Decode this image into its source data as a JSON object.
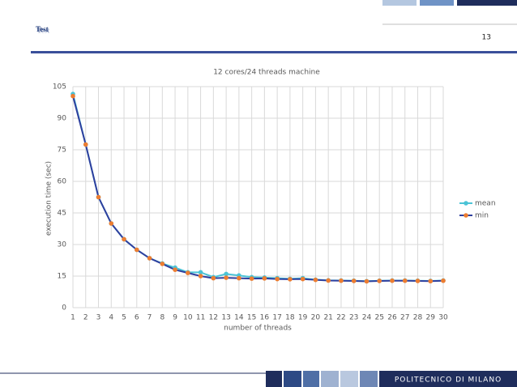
{
  "slide": {
    "title": "Test",
    "page_number": "13",
    "footer": "POLITECNICO DI MILANO"
  },
  "chart_data": {
    "type": "line",
    "title": "12 cores/24 threads machine",
    "x_label": "number of threads",
    "y_label": "execution time (sec)",
    "x": [
      1,
      2,
      3,
      4,
      5,
      6,
      7,
      8,
      9,
      10,
      11,
      12,
      13,
      14,
      15,
      16,
      17,
      18,
      19,
      20,
      21,
      22,
      23,
      24,
      25,
      26,
      27,
      28,
      29,
      30
    ],
    "xlim": [
      1,
      30
    ],
    "ylim": [
      0,
      105
    ],
    "yticks": [
      0,
      15,
      30,
      45,
      60,
      75,
      90,
      105
    ],
    "grid": true,
    "legend": "right",
    "series": [
      {
        "name": "mean",
        "color": "#4bc3d6",
        "marker_color": "#4bc3d6",
        "values": [
          101.5,
          77.5,
          52.5,
          40,
          32.5,
          27.5,
          23.5,
          21,
          19,
          16.8,
          16.8,
          14.5,
          16,
          15.3,
          14.5,
          14.3,
          14,
          13.7,
          14,
          13.3,
          13,
          12.9,
          12.8,
          12.6,
          12.8,
          12.9,
          12.9,
          12.8,
          12.7,
          12.9
        ]
      },
      {
        "name": "min",
        "color": "#2f3f9e",
        "marker_color": "#ed7d31",
        "values": [
          100.5,
          77.5,
          52.5,
          40,
          32.5,
          27.5,
          23.5,
          20.8,
          18,
          16.5,
          15,
          14,
          14.2,
          14,
          13.8,
          13.9,
          13.6,
          13.5,
          13.6,
          13.2,
          12.9,
          12.8,
          12.7,
          12.5,
          12.7,
          12.8,
          12.8,
          12.7,
          12.6,
          12.8
        ]
      }
    ]
  }
}
